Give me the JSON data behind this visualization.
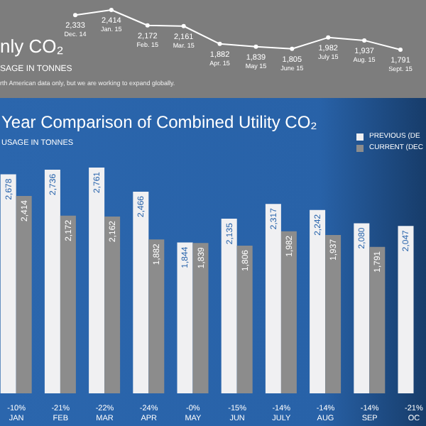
{
  "chart_data": [
    {
      "type": "line",
      "title": "nly CO₂",
      "subtitle": "SAGE IN TONNES",
      "annotations": [
        "rth American data only, but we are working to expand globally."
      ],
      "categories": [
        "Dec. 14",
        "Jan. 15",
        "Feb. 15",
        "Mar. 15",
        "Apr. 15",
        "May 15",
        "June 15",
        "July 15",
        "Aug. 15",
        "Sept. 15"
      ],
      "series": [
        {
          "color": "#ffffff",
          "values": [
            2333,
            2414,
            2172,
            2161,
            1882,
            1839,
            1805,
            1982,
            1937,
            1791
          ],
          "value_labels": [
            "2,333",
            "2,414",
            "2,172",
            "2,161",
            "1,882",
            "1,839",
            "1,805",
            "1,982",
            "1,937",
            "1,791"
          ]
        }
      ],
      "marker": "circle",
      "tick_labels": false
    },
    {
      "type": "bar",
      "title": "Year Comparison of Combined Utility CO₂",
      "subtitle": "USAGE IN TONNES",
      "categories": [
        "JAN",
        "FEB",
        "MAR",
        "APR",
        "MAY",
        "JUN",
        "JULY",
        "AUG",
        "SEP",
        "OC"
      ],
      "series": [
        {
          "name": "PREVIOUS (DE",
          "color": "#f0f0f2",
          "values": [
            2678,
            2736,
            2761,
            2466,
            1844,
            2135,
            2317,
            2242,
            2080,
            2047
          ],
          "value_labels": [
            "2,678",
            "2,736",
            "2,761",
            "2,466",
            "1,844",
            "2,135",
            "2,317",
            "2,242",
            "2,080",
            "2,047"
          ]
        },
        {
          "name": "CURRENT (DEC",
          "color": "#8c8c8c",
          "values": [
            2414,
            2172,
            2162,
            1882,
            1839,
            1806,
            1982,
            1937,
            1791,
            null
          ],
          "value_labels": [
            "2,414",
            "2,172",
            "2,162",
            "1,882",
            "1,839",
            "1,806",
            "1,982",
            "1,937",
            "1,791",
            null
          ]
        }
      ],
      "annotations": [
        "-10%",
        "-21%",
        "-22%",
        "-24%",
        "-0%",
        "-15%",
        "-14%",
        "-14%",
        "-14%",
        "-21%"
      ],
      "legend": "top right",
      "tick_labels": "x"
    }
  ]
}
